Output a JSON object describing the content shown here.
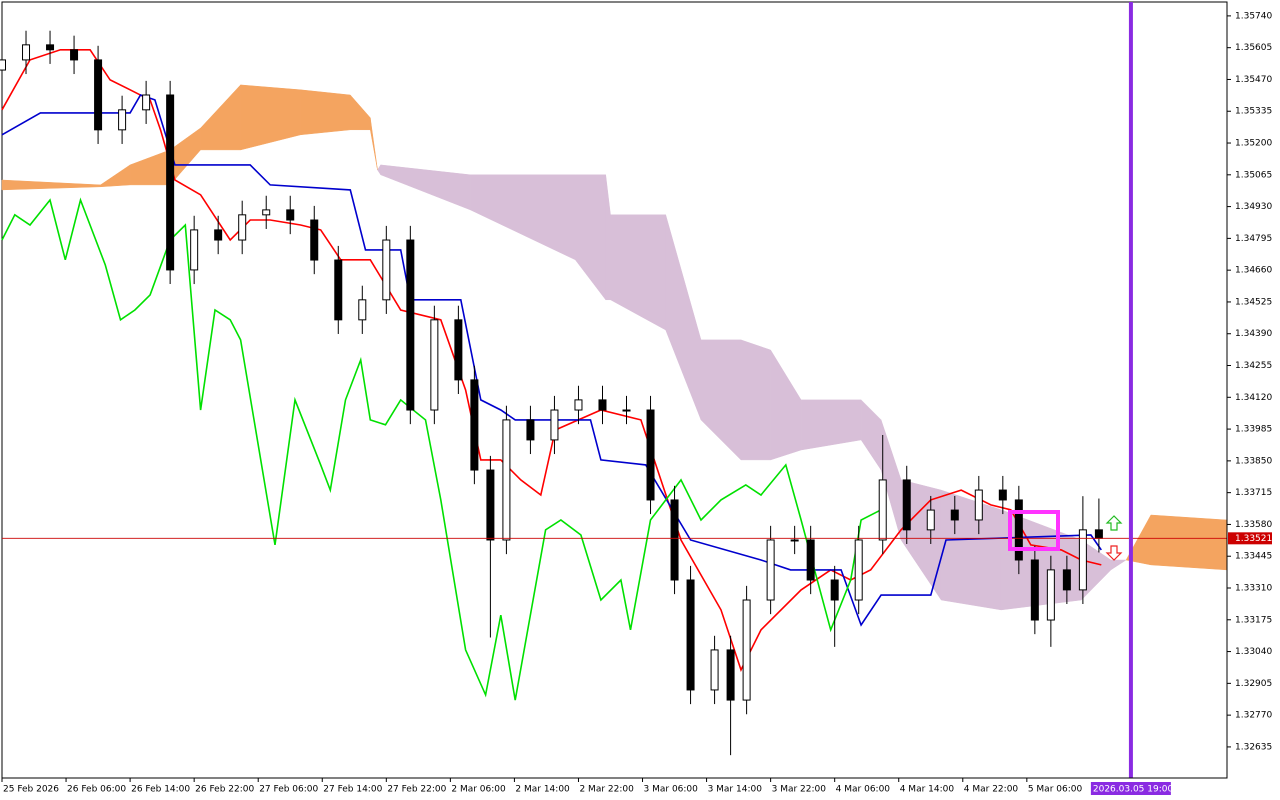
{
  "chart_data": {
    "type": "candlestick",
    "xlim": [
      0,
      153
    ],
    "ylim": [
      1.32503,
      1.35799
    ],
    "xticks": [
      {
        "value": 0,
        "label": "25 Feb 2026"
      },
      {
        "value": 8,
        "label": "26 Feb 06:00"
      },
      {
        "value": 16,
        "label": "26 Feb 14:00"
      },
      {
        "value": 24,
        "label": "26 Feb 22:00"
      },
      {
        "value": 32,
        "label": "27 Feb 06:00"
      },
      {
        "value": 40,
        "label": "27 Feb 14:00"
      },
      {
        "value": 48,
        "label": "27 Feb 22:00"
      },
      {
        "value": 56,
        "label": "2 Mar 06:00"
      },
      {
        "value": 64,
        "label": "2 Mar 14:00"
      },
      {
        "value": 72,
        "label": "2 Mar 22:00"
      },
      {
        "value": 80,
        "label": "3 Mar 06:00"
      },
      {
        "value": 88,
        "label": "3 Mar 14:00"
      },
      {
        "value": 96,
        "label": "3 Mar 22:00"
      },
      {
        "value": 104,
        "label": "4 Mar 06:00"
      },
      {
        "value": 112,
        "label": "4 Mar 14:00"
      },
      {
        "value": 120,
        "label": "4 Mar 22:00"
      },
      {
        "value": 128,
        "label": "5 Mar 06:00"
      }
    ],
    "yticks": [
      {
        "value": 1.3574,
        "label": "1.35740"
      },
      1.35605,
      {
        "value": 1.3547,
        "label": "1.35470"
      },
      1.35335,
      {
        "value": 1.352,
        "label": "1.35200"
      },
      1.35065,
      {
        "value": 1.3493,
        "label": "1.34930"
      },
      1.34795,
      {
        "value": 1.3466,
        "label": "1.34660"
      },
      1.34525,
      {
        "value": 1.3439,
        "label": "1.34390"
      },
      1.34255,
      {
        "value": 1.3412,
        "label": "1.34120"
      },
      1.33985,
      {
        "value": 1.3385,
        "label": "1.33850"
      },
      1.33715,
      {
        "value": 1.3358,
        "label": "1.33580"
      },
      1.33445,
      {
        "value": 1.3331,
        "label": "1.33310"
      },
      1.33175,
      {
        "value": 1.3304,
        "label": "1.33040"
      },
      1.32905,
      {
        "value": 1.3277,
        "label": "1.32770"
      },
      1.32635
    ],
    "candles": {
      "up_color": "#ffffff",
      "down_color": "#000000",
      "x": [
        0,
        3,
        6,
        9,
        12,
        15,
        18,
        21,
        24,
        27,
        30,
        33,
        36,
        39,
        42,
        45,
        48,
        51,
        54,
        57,
        59,
        61,
        63,
        66,
        69,
        72,
        75,
        78,
        81,
        84,
        86,
        89,
        91,
        93,
        96,
        99,
        101,
        104,
        107,
        110,
        113,
        116,
        119,
        122,
        125,
        127,
        129,
        131,
        133,
        135,
        137
      ],
      "open": [
        1.3551,
        1.35553,
        1.35617,
        1.35596,
        1.35553,
        1.35256,
        1.35341,
        1.35404,
        1.34661,
        1.34831,
        1.34788,
        1.34895,
        1.34916,
        1.34873,
        1.34703,
        1.34449,
        1.34534,
        1.34788,
        1.34066,
        1.34449,
        1.34194,
        1.33811,
        1.33514,
        1.34024,
        1.33939,
        1.34066,
        1.34109,
        1.34066,
        1.34066,
        1.33684,
        1.33344,
        1.32877,
        1.33047,
        1.32834,
        1.33259,
        1.33514,
        1.33514,
        1.33344,
        1.33259,
        1.33514,
        1.33769,
        1.33557,
        1.33641,
        1.33599,
        1.33726,
        1.33684,
        1.33429,
        1.33174,
        1.33387,
        1.33302,
        1.33557
      ],
      "high": [
        1.35613,
        1.35677,
        1.35677,
        1.35656,
        1.35613,
        1.35401,
        1.35464,
        1.35464,
        1.34891,
        1.34891,
        1.34955,
        1.34976,
        1.34976,
        1.34933,
        1.34763,
        1.34594,
        1.34848,
        1.34848,
        1.34509,
        1.34509,
        1.34254,
        1.33871,
        1.34084,
        1.34084,
        1.34126,
        1.34169,
        1.34169,
        1.34126,
        1.34126,
        1.33744,
        1.33404,
        1.33107,
        1.33107,
        1.33319,
        1.33574,
        1.33574,
        1.33574,
        1.33404,
        1.33574,
        1.3396,
        1.33829,
        1.33701,
        1.33701,
        1.33786,
        1.33786,
        1.33744,
        1.33489,
        1.33447,
        1.33447,
        1.337,
        1.3369
      ],
      "low": [
        1.3545,
        1.35493,
        1.35536,
        1.35493,
        1.35196,
        1.35196,
        1.35281,
        1.34601,
        1.34601,
        1.34728,
        1.34728,
        1.34835,
        1.34813,
        1.34643,
        1.34389,
        1.34389,
        1.34474,
        1.34006,
        1.34006,
        1.34134,
        1.33751,
        1.331,
        1.33454,
        1.33879,
        1.33879,
        1.34006,
        1.34006,
        1.34006,
        1.33624,
        1.33284,
        1.32817,
        1.32817,
        1.326,
        1.32774,
        1.33199,
        1.33454,
        1.33284,
        1.3306,
        1.33199,
        1.33454,
        1.33497,
        1.33497,
        1.33539,
        1.33539,
        1.33624,
        1.33369,
        1.33114,
        1.3306,
        1.33242,
        1.33242,
        1.33461
      ],
      "close": [
        1.35553,
        1.35617,
        1.35596,
        1.35553,
        1.35256,
        1.35341,
        1.35404,
        1.34661,
        1.34831,
        1.34788,
        1.34895,
        1.34916,
        1.34873,
        1.34703,
        1.34449,
        1.34534,
        1.34788,
        1.34066,
        1.34449,
        1.34194,
        1.33811,
        1.33514,
        1.34024,
        1.33939,
        1.34066,
        1.34109,
        1.34066,
        1.34066,
        1.33684,
        1.33344,
        1.32877,
        1.33047,
        1.32834,
        1.33259,
        1.33514,
        1.33514,
        1.33344,
        1.33259,
        1.33514,
        1.33769,
        1.33557,
        1.33641,
        1.33599,
        1.33726,
        1.33684,
        1.33429,
        1.33174,
        1.33387,
        1.33302,
        1.33557,
        1.33521
      ]
    },
    "cloud": {
      "bull_color": "#f4a460",
      "bear_color": "#d8bfd8",
      "x": [
        0,
        12.3,
        16,
        21,
        24.8,
        29.8,
        37.3,
        43.5,
        46,
        46.9,
        47.3,
        58.5,
        71.6,
        75.4,
        76,
        82.9,
        87.3,
        92.3,
        96,
        99.8,
        107.3,
        109.8,
        112.3,
        117.3,
        124.8,
        134.8,
        138.5,
        140.4,
        143.5,
        153
      ],
      "span_a": [
        1.35043,
        1.35022,
        1.35107,
        1.35171,
        1.35264,
        1.35447,
        1.35426,
        1.35404,
        1.35307,
        1.35086,
        1.35065,
        1.34916,
        1.34704,
        1.34534,
        1.34534,
        1.34406,
        1.34024,
        1.33854,
        1.33854,
        1.33896,
        1.33939,
        1.33811,
        1.33514,
        1.33259,
        1.33217,
        1.33259,
        1.33387,
        1.33429,
        1.3362,
        1.33599
      ],
      "span_b": [
        1.35001,
        1.35014,
        1.35022,
        1.35022,
        1.35171,
        1.35171,
        1.35235,
        1.35256,
        1.35256,
        1.35086,
        1.35107,
        1.35065,
        1.35065,
        1.35065,
        1.34895,
        1.34895,
        1.34364,
        1.34364,
        1.34321,
        1.34109,
        1.34109,
        1.34024,
        1.33769,
        1.33726,
        1.33642,
        1.33514,
        1.33429,
        1.33429,
        1.33408,
        1.33387
      ]
    },
    "series": [
      {
        "color": "#ff0000",
        "x": [
          0,
          3.5,
          7.3,
          11,
          13.5,
          16,
          18.5,
          19.8,
          21.6,
          24.8,
          28.5,
          31,
          33.5,
          37.3,
          39.8,
          42.3,
          46,
          49.8,
          54.8,
          57.9,
          59.8,
          62.3,
          64.8,
          67.3,
          69.1,
          74.8,
          79.8,
          82.3,
          84.8,
          89.8,
          92.3,
          94.8,
          99.8,
          103.5,
          106,
          108.5,
          112.3,
          116,
          119.8,
          123.5,
          126,
          128.5,
          132.3,
          134.8,
          137.3
        ],
        "values": [
          1.35341,
          1.35553,
          1.35596,
          1.35596,
          1.35468,
          1.35426,
          1.35383,
          1.35256,
          1.35043,
          1.3498,
          1.34788,
          1.34873,
          1.34873,
          1.34852,
          1.34831,
          1.34704,
          1.34704,
          1.34491,
          1.34449,
          1.34151,
          1.33854,
          1.33854,
          1.33769,
          1.33705,
          1.33981,
          1.34066,
          1.34024,
          1.33769,
          1.33514,
          1.33217,
          1.32962,
          1.33132,
          1.33302,
          1.33387,
          1.33344,
          1.33387,
          1.33557,
          1.33684,
          1.33726,
          1.33663,
          1.33642,
          1.33493,
          1.33472,
          1.33429,
          1.33408
        ]
      },
      {
        "color": "#0000cd",
        "x": [
          0,
          4.8,
          16,
          17.3,
          19.1,
          21.6,
          31,
          33.5,
          43.5,
          45.4,
          49.8,
          51,
          57.3,
          59.8,
          62.3,
          64.1,
          73.5,
          74.8,
          80.4,
          86,
          94.8,
          98.5,
          104.8,
          107.3,
          109.8,
          116,
          117.9,
          136,
          137.3
        ],
        "values": [
          1.35235,
          1.35328,
          1.35328,
          1.35404,
          1.35383,
          1.35107,
          1.35107,
          1.35022,
          1.35001,
          1.34746,
          1.34746,
          1.34534,
          1.34534,
          1.34109,
          1.34066,
          1.34024,
          1.34024,
          1.33854,
          1.33833,
          1.33514,
          1.33429,
          1.33387,
          1.33387,
          1.33153,
          1.3328,
          1.3328,
          1.33514,
          1.33535,
          1.33472
        ]
      },
      {
        "color": "#00e000",
        "x": [
          0,
          1.6,
          3.5,
          6,
          7.9,
          9.8,
          12.9,
          14.8,
          16.6,
          18.5,
          21,
          22.9,
          24.8,
          26.6,
          28.5,
          29.8,
          34.1,
          36.6,
          39.8,
          41,
          42.9,
          44.8,
          46,
          47.9,
          49.8,
          52.9,
          54.8,
          57.9,
          60.4,
          62.3,
          64.1,
          67.9,
          69.8,
          72.3,
          74.8,
          77.3,
          78.5,
          81,
          84.8,
          87.3,
          89.8,
          92.9,
          94.8,
          97.9,
          99.8,
          103.5,
          106,
          107.3,
          109.8,
          110.4
        ],
        "values": [
          1.34788,
          1.34895,
          1.34852,
          1.34958,
          1.34704,
          1.34958,
          1.34682,
          1.34449,
          1.34491,
          1.34555,
          1.34788,
          1.34852,
          1.34066,
          1.34491,
          1.34449,
          1.34364,
          1.33493,
          1.34109,
          1.33833,
          1.33726,
          1.34109,
          1.34279,
          1.34024,
          1.34003,
          1.34109,
          1.34024,
          1.33684,
          1.33047,
          1.32856,
          1.33195,
          1.32834,
          1.33557,
          1.33599,
          1.33535,
          1.33259,
          1.33344,
          1.33132,
          1.33599,
          1.33769,
          1.33599,
          1.33684,
          1.33748,
          1.33705,
          1.33833,
          1.33599,
          1.33132,
          1.33344,
          1.33599,
          1.33642,
          1.33599
        ]
      }
    ],
    "price_line": {
      "value": 1.33521,
      "label": "1.33521",
      "color": "#cc0000"
    },
    "cursor": {
      "value": 136,
      "label": "2026.03.05 19:00",
      "color": "#8a2be2"
    },
    "vline": {
      "value": 141,
      "color": "#8a2be2"
    }
  }
}
